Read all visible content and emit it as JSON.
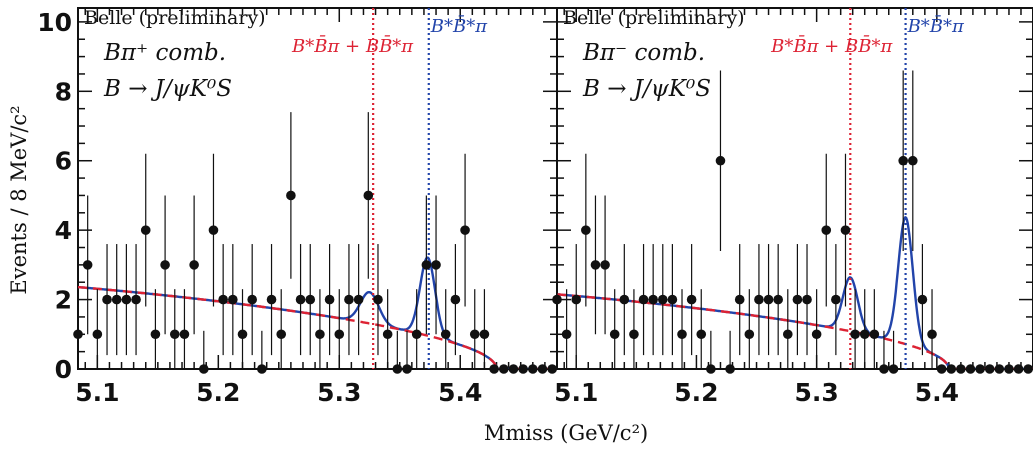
{
  "chart_data": [
    {
      "type": "scatter",
      "panel": "left",
      "experiment_label": "Belle (preliminary)",
      "info_lines": [
        "Bπ⁺ comb.",
        "B → J/ψK⁰S"
      ],
      "xlim": [
        5.084,
        5.48
      ],
      "ylim": [
        0,
        10.4
      ],
      "xticks": [
        5.1,
        5.2,
        5.3,
        5.4
      ],
      "yticks": [
        0,
        2,
        4,
        6,
        8,
        10
      ],
      "x": [
        5.084,
        5.092,
        5.1,
        5.108,
        5.116,
        5.124,
        5.132,
        5.14,
        5.148,
        5.156,
        5.164,
        5.172,
        5.18,
        5.188,
        5.196,
        5.204,
        5.212,
        5.22,
        5.228,
        5.236,
        5.244,
        5.252,
        5.26,
        5.268,
        5.276,
        5.284,
        5.292,
        5.3,
        5.308,
        5.316,
        5.324,
        5.332,
        5.34,
        5.348,
        5.356,
        5.364,
        5.372,
        5.38,
        5.388,
        5.396,
        5.404,
        5.412,
        5.42,
        5.428,
        5.436,
        5.444,
        5.452,
        5.46,
        5.468,
        5.476
      ],
      "values": [
        1,
        3,
        1,
        2,
        2,
        2,
        2,
        4,
        1,
        3,
        1,
        1,
        3,
        0,
        4,
        2,
        2,
        1,
        2,
        0,
        2,
        1,
        5,
        2,
        2,
        1,
        2,
        1,
        2,
        2,
        5,
        2,
        1,
        0,
        0,
        1,
        3,
        3,
        1,
        2,
        4,
        1,
        1,
        0,
        0,
        0,
        0,
        0,
        0,
        0
      ],
      "errors": [
        1.3,
        2.0,
        1.3,
        1.6,
        1.6,
        1.6,
        1.6,
        2.2,
        1.3,
        2.0,
        1.3,
        1.3,
        2.0,
        1.1,
        2.2,
        1.6,
        1.6,
        1.3,
        1.6,
        1.1,
        1.6,
        1.3,
        2.4,
        1.6,
        1.6,
        1.3,
        1.6,
        1.3,
        1.6,
        1.6,
        2.4,
        1.6,
        1.3,
        1.1,
        1.1,
        1.3,
        2.0,
        2.0,
        1.3,
        1.6,
        2.2,
        1.3,
        1.3,
        0.2,
        0.2,
        0.2,
        0.2,
        0.2,
        0.2,
        0.2
      ],
      "background_level": 1.95,
      "cutoff": 5.43,
      "peaks": [
        {
          "mean": 5.325,
          "amplitude": 0.9,
          "width": 0.0075
        },
        {
          "mean": 5.373,
          "amplitude": 2.25,
          "width": 0.0062
        }
      ],
      "markers": [
        {
          "x": 5.328,
          "label": "B*B̄π + BB̄*π",
          "color": "#dd2233"
        },
        {
          "x": 5.374,
          "label": "B*B̄*π",
          "color": "#2244aa"
        }
      ]
    },
    {
      "type": "scatter",
      "panel": "right",
      "experiment_label": "Belle (preliminary)",
      "info_lines": [
        "Bπ⁻ comb.",
        "B → J/ψK⁰S"
      ],
      "xlim": [
        5.084,
        5.48
      ],
      "ylim": [
        0,
        10.4
      ],
      "xticks": [
        5.1,
        5.2,
        5.3,
        5.4
      ],
      "yticks": [
        0,
        2,
        4,
        6,
        8,
        10
      ],
      "x": [
        5.084,
        5.092,
        5.1,
        5.108,
        5.116,
        5.124,
        5.132,
        5.14,
        5.148,
        5.156,
        5.164,
        5.172,
        5.18,
        5.188,
        5.196,
        5.204,
        5.212,
        5.22,
        5.228,
        5.236,
        5.244,
        5.252,
        5.26,
        5.268,
        5.276,
        5.284,
        5.292,
        5.3,
        5.308,
        5.316,
        5.324,
        5.332,
        5.34,
        5.348,
        5.356,
        5.364,
        5.372,
        5.38,
        5.388,
        5.396,
        5.404,
        5.412,
        5.42,
        5.428,
        5.436,
        5.444,
        5.452,
        5.46,
        5.468,
        5.476
      ],
      "values": [
        2,
        1,
        2,
        4,
        3,
        3,
        1,
        2,
        1,
        2,
        2,
        2,
        2,
        1,
        2,
        1,
        0,
        6,
        0,
        2,
        1,
        2,
        2,
        2,
        1,
        2,
        2,
        1,
        4,
        2,
        4,
        1,
        1,
        1,
        0,
        0,
        6,
        6,
        2,
        1,
        0,
        0,
        0,
        0,
        0,
        0,
        0,
        0,
        0,
        0
      ],
      "errors": [
        1.6,
        1.3,
        1.6,
        2.2,
        2.0,
        2.0,
        1.3,
        1.6,
        1.3,
        1.6,
        1.6,
        1.6,
        1.6,
        1.3,
        1.6,
        1.3,
        1.1,
        2.6,
        1.1,
        1.6,
        1.3,
        1.6,
        1.6,
        1.6,
        1.3,
        1.6,
        1.6,
        1.3,
        2.2,
        1.6,
        2.2,
        1.3,
        1.3,
        1.3,
        1.1,
        1.1,
        2.6,
        2.6,
        1.6,
        1.3,
        0.2,
        0.2,
        0.2,
        0.2,
        0.2,
        0.2,
        0.2,
        0.2,
        0.2,
        0.2
      ],
      "background_level": 1.75,
      "cutoff": 5.41,
      "peaks": [
        {
          "mean": 5.328,
          "amplitude": 1.55,
          "width": 0.0062
        },
        {
          "mean": 5.374,
          "amplitude": 3.65,
          "width": 0.006
        }
      ],
      "markers": [
        {
          "x": 5.328,
          "label": "B*B̄π + BB̄*π",
          "color": "#dd2233"
        },
        {
          "x": 5.374,
          "label": "B*B̄*π",
          "color": "#2244aa"
        }
      ]
    }
  ],
  "ylabel": "Events / 8 MeV/c²",
  "xlabel": "Mmiss (GeV/c²)",
  "colors": {
    "fit": "#2244aa",
    "background": "#dd2233",
    "data": "#111111"
  }
}
